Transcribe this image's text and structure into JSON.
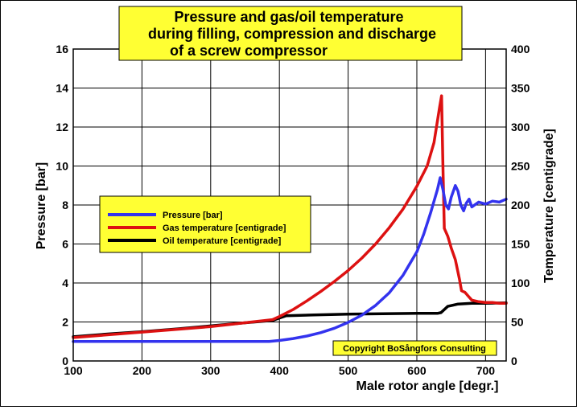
{
  "chart_data": {
    "type": "line",
    "title_lines": [
      "Pressure and gas/oil temperature",
      "during filling, compression and discharge",
      "of a screw compressor"
    ],
    "xlabel": "Male rotor angle [degr.]",
    "ylabel_left": "Pressure [bar]",
    "ylabel_right": "Temperature [centigrade]",
    "xlim": [
      100,
      730
    ],
    "ylim_left": [
      0,
      16
    ],
    "ylim_right": [
      0,
      400
    ],
    "x_ticks": [
      100,
      200,
      300,
      400,
      500,
      600,
      700
    ],
    "y_left_ticks": [
      0,
      2,
      4,
      6,
      8,
      10,
      12,
      14,
      16
    ],
    "y_right_ticks": [
      0,
      50,
      100,
      150,
      200,
      250,
      300,
      350,
      400
    ],
    "grid": true,
    "legend_position": "center-left",
    "copyright": "Copyright BoSångfors Consulting",
    "series": [
      {
        "name": "Pressure [bar]",
        "axis": "left",
        "color": "#3333ee",
        "x": [
          100,
          200,
          300,
          385,
          400,
          420,
          440,
          460,
          480,
          500,
          520,
          540,
          560,
          580,
          600,
          610,
          620,
          630,
          634,
          638,
          642,
          646,
          650,
          656,
          660,
          664,
          668,
          672,
          676,
          680,
          690,
          700,
          710,
          720,
          730
        ],
        "y": [
          1.0,
          1.0,
          1.0,
          1.0,
          1.05,
          1.15,
          1.28,
          1.45,
          1.68,
          1.98,
          2.35,
          2.85,
          3.5,
          4.4,
          5.6,
          6.5,
          7.6,
          8.8,
          9.4,
          8.8,
          8.0,
          7.8,
          8.4,
          9.0,
          8.7,
          8.0,
          7.7,
          8.1,
          8.3,
          7.9,
          8.15,
          8.05,
          8.2,
          8.15,
          8.3
        ]
      },
      {
        "name": "Gas temperature [centigrade]",
        "axis": "right",
        "color": "#dd1111",
        "x": [
          100,
          200,
          300,
          390,
          400,
          420,
          440,
          460,
          480,
          500,
          520,
          540,
          560,
          580,
          600,
          615,
          625,
          633,
          636,
          638,
          640,
          645,
          650,
          656,
          662,
          665,
          670,
          675,
          680,
          690,
          700,
          710,
          720,
          730
        ],
        "y": [
          30,
          37,
          44,
          53,
          57,
          66,
          77,
          89,
          102,
          116,
          132,
          150,
          171,
          195,
          224,
          250,
          280,
          325,
          340,
          250,
          170,
          160,
          145,
          130,
          105,
          90,
          88,
          83,
          78,
          76,
          75,
          75,
          74,
          74
        ]
      },
      {
        "name": "Oil temperature [centigrade]",
        "axis": "right",
        "color": "#000000",
        "x": [
          100,
          150,
          200,
          250,
          300,
          350,
          390,
          400,
          410,
          450,
          500,
          550,
          600,
          630,
          635,
          645,
          660,
          680,
          700,
          730
        ],
        "y": [
          31,
          34.5,
          37.5,
          41,
          45,
          49,
          52,
          55,
          58,
          59,
          60,
          60.5,
          61,
          61,
          62,
          70,
          73,
          74,
          74,
          74.5
        ]
      }
    ]
  }
}
